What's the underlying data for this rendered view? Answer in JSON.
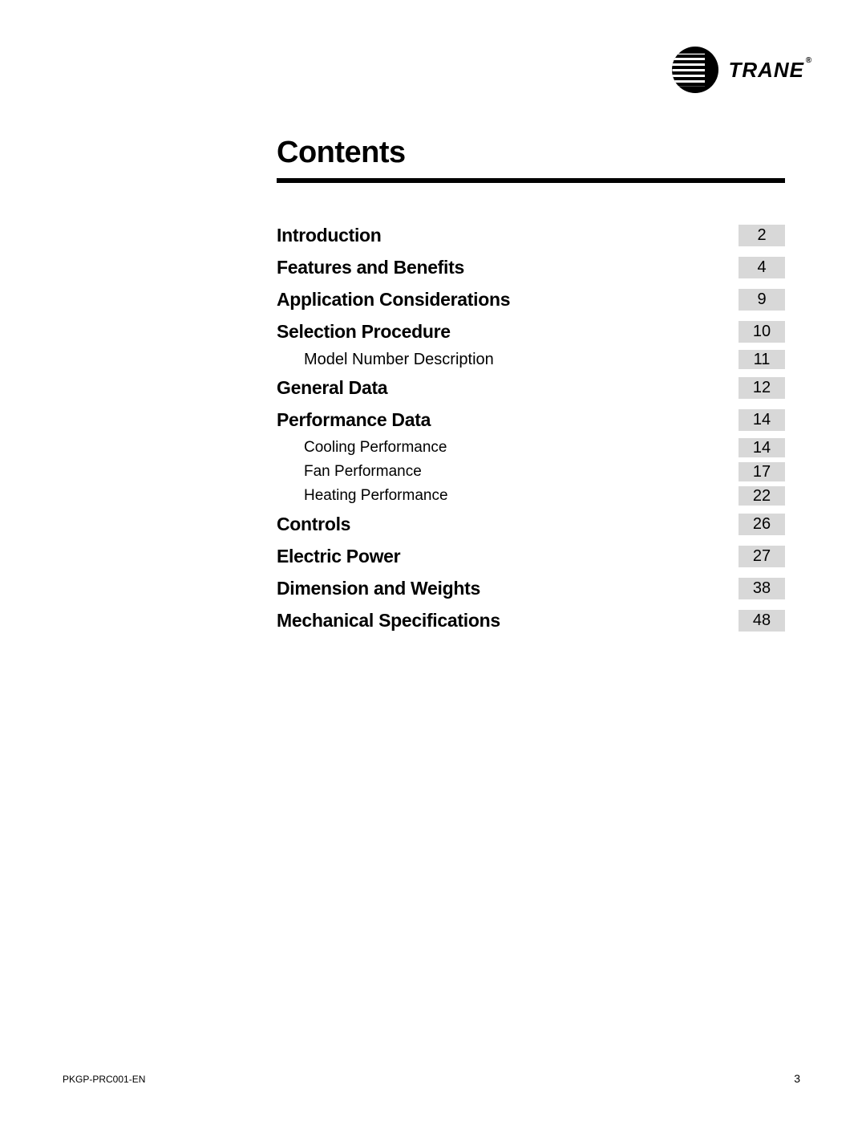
{
  "brand": {
    "name": "TRANE",
    "registered": "®"
  },
  "title": "Contents",
  "toc": [
    {
      "label": "Introduction",
      "page": "2",
      "style": "bold"
    },
    {
      "label": "Features and Benefits",
      "page": "4",
      "style": "bold"
    },
    {
      "label": "Application Considerations",
      "page": "9",
      "style": "bold"
    },
    {
      "label": "Selection Procedure",
      "page": "10",
      "style": "bold"
    },
    {
      "label": "Model Number Description",
      "page": "11",
      "style": "sub"
    },
    {
      "label": "General Data",
      "page": "12",
      "style": "bold"
    },
    {
      "label": "Performance Data",
      "page": "14",
      "style": "bold"
    },
    {
      "label": "Cooling Performance",
      "page": "14",
      "style": "sub2"
    },
    {
      "label": "Fan Performance",
      "page": "17",
      "style": "sub2"
    },
    {
      "label": "Heating Performance",
      "page": "22",
      "style": "sub2"
    },
    {
      "label": "Controls",
      "page": "26",
      "style": "bold"
    },
    {
      "label": "Electric Power",
      "page": "27",
      "style": "bold"
    },
    {
      "label": "Dimension and Weights",
      "page": "38",
      "style": "bold"
    },
    {
      "label": "Mechanical Specifications",
      "page": "48",
      "style": "bold"
    }
  ],
  "footer": {
    "doc_code": "PKGP-PRC001-EN",
    "page_number": "3"
  },
  "colors": {
    "page_chip_bg": "#d8d8d8",
    "text": "#000000",
    "background": "#ffffff",
    "rule": "#000000"
  }
}
